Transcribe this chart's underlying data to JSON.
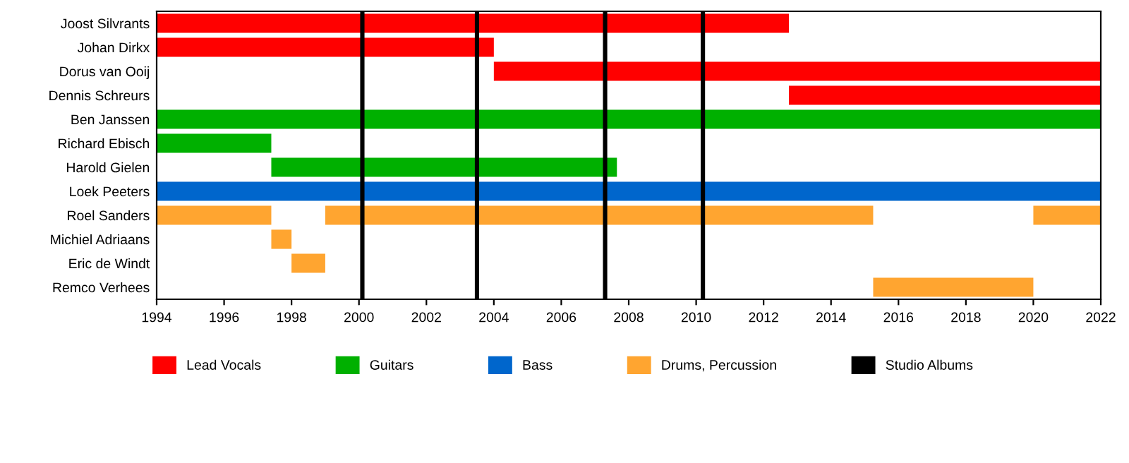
{
  "chart_data": {
    "type": "bar",
    "orientation": "horizontal",
    "categories": [
      "Joost Silvrants",
      "Johan Dirkx",
      "Dorus van Ooij",
      "Dennis Schreurs",
      "Ben Janssen",
      "Richard Ebisch",
      "Harold Gielen",
      "Loek Peeters",
      "Roel Sanders",
      "Michiel Adriaans",
      "Eric de Windt",
      "Remco Verhees"
    ],
    "series": [
      {
        "name": "Lead Vocals",
        "color": "#ff0000",
        "base": [
          1994,
          1994,
          2004.0,
          2012.75,
          null,
          null,
          null,
          null,
          null,
          null,
          null,
          null
        ],
        "values": [
          18.75,
          10.0,
          18.0,
          9.25,
          null,
          null,
          null,
          null,
          null,
          null,
          null,
          null
        ]
      },
      {
        "name": "Guitars",
        "color": "#00b000",
        "base": [
          null,
          null,
          null,
          null,
          1994,
          1994,
          1997.4,
          null,
          null,
          null,
          null,
          null
        ],
        "values": [
          null,
          null,
          null,
          null,
          28,
          3.4,
          10.25,
          null,
          null,
          null,
          null,
          null
        ]
      },
      {
        "name": "Bass",
        "color": "#0066cc",
        "base": [
          null,
          null,
          null,
          null,
          null,
          null,
          null,
          1994,
          null,
          null,
          null,
          null
        ],
        "values": [
          null,
          null,
          null,
          null,
          null,
          null,
          null,
          28,
          null,
          null,
          null,
          null
        ]
      },
      {
        "name": "Drums, Percussion",
        "color": "#ffa530",
        "base": [
          null,
          null,
          null,
          null,
          null,
          null,
          null,
          null,
          1994,
          1997.4,
          1998.0,
          2015.25
        ],
        "values": [
          null,
          null,
          null,
          null,
          null,
          null,
          null,
          null,
          3.4,
          0.6,
          1.0,
          4.75
        ]
      },
      {
        "color": "#ffa530",
        "base": [
          null,
          null,
          null,
          null,
          null,
          null,
          null,
          null,
          1999.0,
          null,
          null,
          null
        ],
        "values": [
          null,
          null,
          null,
          null,
          null,
          null,
          null,
          null,
          16.25,
          null,
          null,
          null
        ]
      },
      {
        "color": "#ffa530",
        "base": [
          null,
          null,
          null,
          null,
          null,
          null,
          null,
          null,
          2020.0,
          null,
          null,
          null
        ],
        "values": [
          null,
          null,
          null,
          null,
          null,
          null,
          null,
          null,
          2.0,
          null,
          null,
          null
        ]
      }
    ],
    "ref_lines": [
      {
        "axis": "x",
        "value": 2000.1,
        "label": "Studio Albums",
        "color": "#000000"
      },
      {
        "axis": "x",
        "value": 2003.5,
        "color": "#000000"
      },
      {
        "axis": "x",
        "value": 2007.3,
        "color": "#000000"
      },
      {
        "axis": "x",
        "value": 2010.2,
        "color": "#000000"
      }
    ],
    "xlim": [
      1994,
      2022
    ],
    "xticks": [
      1994,
      1996,
      1998,
      2000,
      2002,
      2004,
      2006,
      2008,
      2010,
      2012,
      2014,
      2016,
      2018,
      2020,
      2022
    ],
    "grid": false,
    "legend": "bottom"
  }
}
